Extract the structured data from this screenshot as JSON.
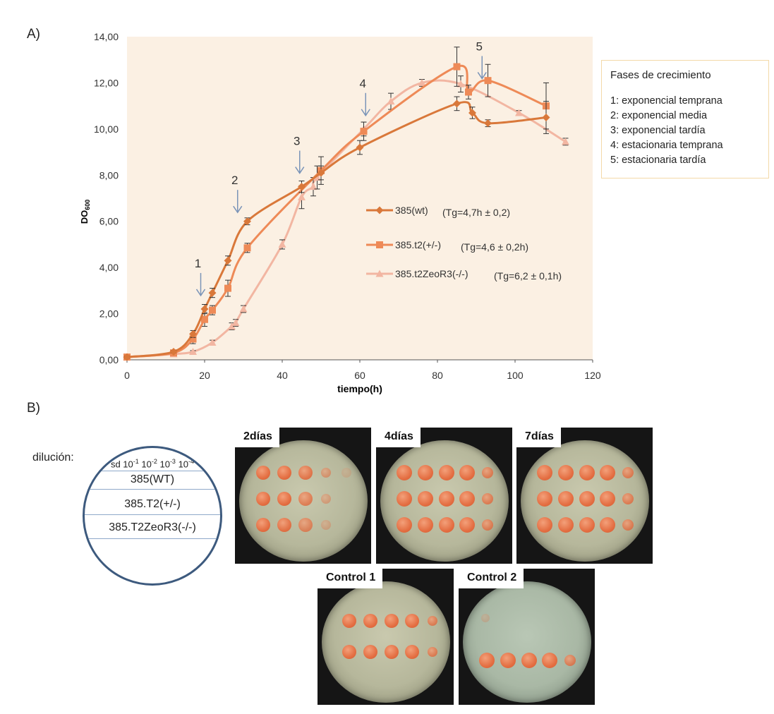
{
  "panel_a_label": "A)",
  "panel_b_label": "B)",
  "chart_data": {
    "type": "line",
    "xlabel": "tiempo(h)",
    "ylabel": "DO600",
    "xlim": [
      0,
      120
    ],
    "ylim": [
      0,
      14
    ],
    "x_ticks": [
      "0",
      "20",
      "40",
      "60",
      "80",
      "100",
      "120"
    ],
    "y_ticks": [
      "0,00",
      "2,00",
      "4,00",
      "6,00",
      "8,00",
      "10,00",
      "12,00",
      "14,00"
    ],
    "grid": false,
    "legend_placement": "center-right",
    "series": [
      {
        "name": "385(wt)",
        "annotation": "(Tg=4,7h ± 0,2)",
        "marker": "diamond",
        "color": "#d9783a",
        "x": [
          0,
          12,
          17,
          20,
          22,
          26,
          31,
          45,
          50,
          60,
          85,
          89,
          93,
          108
        ],
        "y": [
          0.12,
          0.35,
          1.12,
          2.2,
          2.9,
          4.3,
          6.0,
          7.5,
          8.1,
          9.2,
          11.1,
          10.7,
          10.25,
          10.5
        ],
        "err": [
          0.05,
          0.05,
          0.15,
          0.2,
          0.2,
          0.2,
          0.15,
          0.25,
          0.3,
          0.3,
          0.3,
          0.25,
          0.15,
          0.7
        ]
      },
      {
        "name": "385.t2(+/-)",
        "annotation": "(Tg=4,6 ± 0,2h)",
        "marker": "square",
        "color": "#ee8a57",
        "x": [
          0,
          12,
          17,
          20,
          22,
          26,
          31,
          50,
          61,
          85,
          88,
          93,
          108
        ],
        "y": [
          0.12,
          0.3,
          0.9,
          1.75,
          2.15,
          3.1,
          4.85,
          8.2,
          9.9,
          12.7,
          11.6,
          12.1,
          11.0
        ],
        "err": [
          0.05,
          0.05,
          0.2,
          0.3,
          0.2,
          0.35,
          0.2,
          0.6,
          0.4,
          0.85,
          0.3,
          0.7,
          1.0
        ]
      },
      {
        "name": "385.t2ZeoR3(-/-)",
        "annotation": "(Tg=6,2 ± 0,1h)",
        "marker": "triangle",
        "color": "#f2b6a2",
        "x": [
          0,
          12,
          17,
          22,
          27,
          28,
          30,
          40,
          45,
          48,
          49,
          61,
          68,
          76,
          86,
          101,
          113
        ],
        "y": [
          0.12,
          0.25,
          0.35,
          0.75,
          1.45,
          1.6,
          2.2,
          5.0,
          7.05,
          7.5,
          7.9,
          10.0,
          11.2,
          12.0,
          11.95,
          10.7,
          9.45
        ],
        "err": [
          0.05,
          0.05,
          0.05,
          0.1,
          0.15,
          0.15,
          0.15,
          0.2,
          0.5,
          0.4,
          0.5,
          0.3,
          0.35,
          0.15,
          0.35,
          0.1,
          0.15
        ]
      }
    ],
    "annotations": [
      {
        "label": "1",
        "x": 19,
        "y": 2.6
      },
      {
        "label": "2",
        "x": 28.5,
        "y": 6.2
      },
      {
        "label": "3",
        "x": 44.5,
        "y": 7.9
      },
      {
        "label": "4",
        "x": 61.5,
        "y": 10.4
      },
      {
        "label": "5",
        "x": 91.5,
        "y": 12.0
      }
    ]
  },
  "phases": {
    "title": "Fases de crecimiento",
    "items": [
      "1: exponencial temprana",
      "2: exponencial media",
      "3: exponencial tardía",
      "4: estacionaria temprana",
      "5: estacionaria tardía"
    ]
  },
  "dilution": {
    "label": "dilución:",
    "header_parts": [
      "sd 10",
      "-1",
      " 10",
      "-2",
      " 10",
      "-3",
      " 10",
      "-4"
    ],
    "strains": [
      "385(WT)",
      "385.T2(+/-)",
      "385.T2ZeoR3(-/-)"
    ]
  },
  "plates": [
    {
      "label": "2días"
    },
    {
      "label": "4días"
    },
    {
      "label": "7días"
    },
    {
      "label": "Control 1"
    },
    {
      "label": "Control 2"
    }
  ]
}
